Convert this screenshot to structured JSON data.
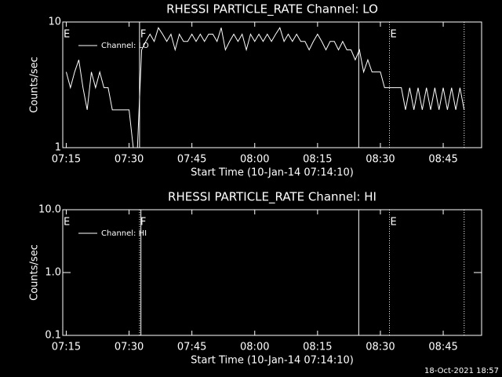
{
  "chart_data": [
    {
      "type": "line",
      "title": "RHESSI PARTICLE_RATE Channel: LO",
      "x_label": "Start Time (10-Jan-14 07:14:10)",
      "y_label": "Counts/sec",
      "log_y": true,
      "color": "#ffffff",
      "legend": "upper left",
      "xlim": [
        "07:14:10",
        "08:54:10"
      ],
      "xticks": [
        "07:15",
        "07:30",
        "07:45",
        "08:00",
        "08:15",
        "08:30",
        "08:45"
      ],
      "ylim": [
        1,
        10
      ],
      "yticks": [
        1,
        10
      ],
      "annotations": [
        {
          "x": "07:14:10",
          "text": "E"
        },
        {
          "x": "07:32:30",
          "text": "F"
        },
        {
          "x": "08:32:10",
          "text": "E"
        }
      ],
      "markers": [
        {
          "x": "07:32:30",
          "style": "solid"
        },
        {
          "x": "08:24:50",
          "style": "solid"
        },
        {
          "x": "08:32:10",
          "style": "dotted"
        },
        {
          "x": "08:50:00",
          "style": "dotted"
        }
      ],
      "x": [
        "07:15",
        "07:16",
        "07:17",
        "07:18",
        "07:19",
        "07:20",
        "07:21",
        "07:22",
        "07:23",
        "07:24",
        "07:25",
        "07:26",
        "07:27",
        "07:28",
        "07:29",
        "07:30",
        "07:31",
        "07:32",
        "07:33",
        "07:34",
        "07:35",
        "07:36",
        "07:37",
        "07:38",
        "07:39",
        "07:40",
        "07:41",
        "07:42",
        "07:43",
        "07:44",
        "07:45",
        "07:46",
        "07:47",
        "07:48",
        "07:49",
        "07:50",
        "07:51",
        "07:52",
        "07:53",
        "07:54",
        "07:55",
        "07:56",
        "07:57",
        "07:58",
        "07:59",
        "08:00",
        "08:01",
        "08:02",
        "08:03",
        "08:04",
        "08:05",
        "08:06",
        "08:07",
        "08:08",
        "08:09",
        "08:10",
        "08:11",
        "08:12",
        "08:13",
        "08:14",
        "08:15",
        "08:16",
        "08:17",
        "08:18",
        "08:19",
        "08:20",
        "08:21",
        "08:22",
        "08:23",
        "08:24",
        "08:25",
        "08:26",
        "08:27",
        "08:28",
        "08:29",
        "08:30",
        "08:31",
        "08:32",
        "08:33",
        "08:34",
        "08:35",
        "08:36",
        "08:37",
        "08:38",
        "08:39",
        "08:40",
        "08:41",
        "08:42",
        "08:43",
        "08:44",
        "08:45",
        "08:46",
        "08:47",
        "08:48",
        "08:49",
        "08:50"
      ],
      "series": [
        {
          "name": "Channel: LO",
          "color": "#ffffff",
          "values": [
            4,
            3,
            4,
            5,
            3,
            2,
            4,
            3,
            4,
            3,
            3,
            2,
            2,
            2,
            2,
            2,
            1,
            1,
            6,
            7,
            8,
            7,
            9,
            8,
            7,
            8,
            6,
            8,
            7,
            7,
            8,
            7,
            8,
            7,
            8,
            8,
            7,
            9,
            6,
            7,
            8,
            7,
            8,
            6,
            8,
            7,
            8,
            7,
            8,
            7,
            8,
            9,
            7,
            8,
            7,
            8,
            7,
            7,
            6,
            7,
            8,
            7,
            6,
            7,
            7,
            6,
            7,
            6,
            6,
            5,
            6,
            4,
            5,
            4,
            4,
            4,
            3,
            3,
            3,
            3,
            3,
            2,
            3,
            2,
            3,
            2,
            3,
            2,
            3,
            2,
            3,
            2,
            3,
            2,
            3,
            2
          ]
        }
      ]
    },
    {
      "type": "line",
      "title": "RHESSI PARTICLE_RATE Channel: HI",
      "x_label": "Start Time (10-Jan-14 07:14:10)",
      "y_label": "Counts/sec",
      "log_y": true,
      "color": "#ffffff",
      "legend": "upper left",
      "xlim": [
        "07:14:10",
        "08:54:10"
      ],
      "xticks": [
        "07:15",
        "07:30",
        "07:45",
        "08:00",
        "08:15",
        "08:30",
        "08:45"
      ],
      "ylim": [
        0.1,
        10
      ],
      "yticks": [
        {
          "value": 0.1,
          "label": "0.1"
        },
        {
          "value": 1,
          "label": "1.0"
        },
        {
          "value": 10,
          "label": "10.0"
        }
      ],
      "annotations": [
        {
          "x": "07:14:10",
          "text": "E"
        },
        {
          "x": "07:32:30",
          "text": "F"
        },
        {
          "x": "08:32:10",
          "text": "E"
        }
      ],
      "markers": [
        {
          "x": "07:32:30",
          "style": "dotted"
        },
        {
          "x": "07:32:50",
          "style": "solid"
        },
        {
          "x": "08:24:50",
          "style": "solid"
        },
        {
          "x": "08:32:10",
          "style": "dotted"
        },
        {
          "x": "08:50:00",
          "style": "dotted"
        }
      ],
      "x": [],
      "series": [
        {
          "name": "Channel: HI",
          "color": "#ffffff",
          "values": []
        }
      ]
    }
  ],
  "footer": "18-Oct-2021 18:57"
}
